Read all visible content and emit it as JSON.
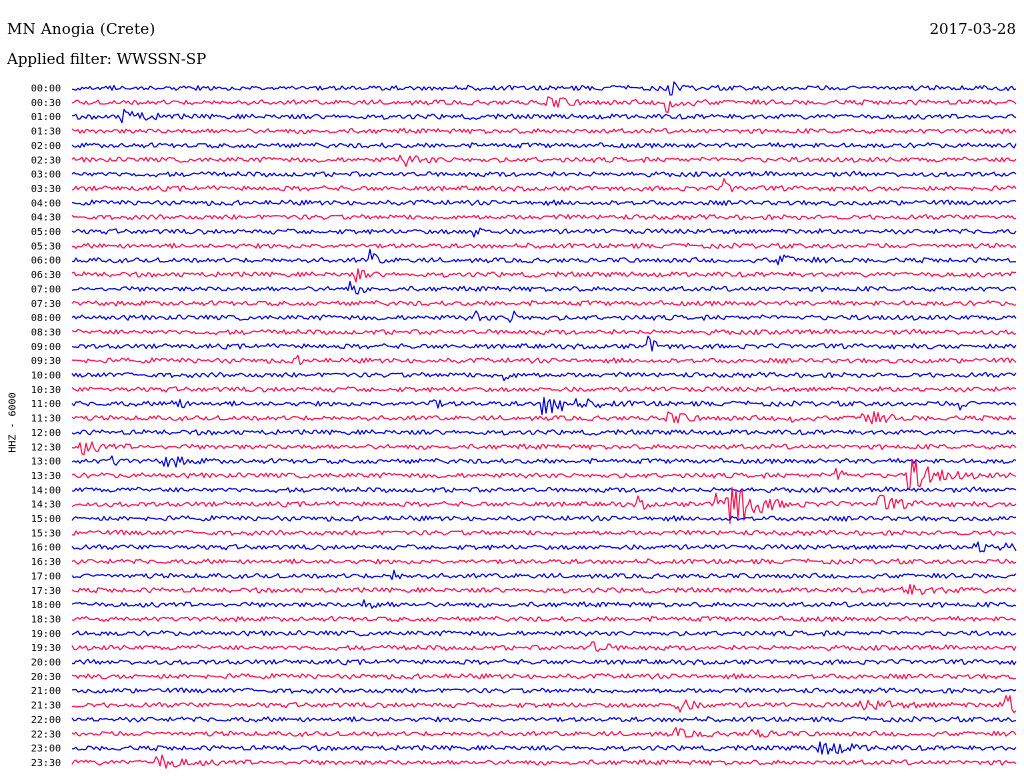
{
  "header": {
    "station": "MN Anogia (Crete)",
    "date": "2017-03-28",
    "filter_label": "Applied filter: WWSSN-SP"
  },
  "colors": {
    "trace_a": "#0000e0",
    "trace_b": "#ff1050",
    "background": "#ffffff"
  },
  "chart_data": {
    "type": "line",
    "title": "MN Anogia (Crete)",
    "ylabel": "HHZ - 6000",
    "x_description": "one 30-minute trace per row",
    "tick_labels": [
      "00:00",
      "00:30",
      "01:00",
      "01:30",
      "02:00",
      "02:30",
      "03:00",
      "03:30",
      "04:00",
      "04:30",
      "05:00",
      "05:30",
      "06:00",
      "06:30",
      "07:00",
      "07:30",
      "08:00",
      "08:30",
      "09:00",
      "09:30",
      "10:00",
      "10:30",
      "11:00",
      "11:30",
      "12:00",
      "12:30",
      "13:00",
      "13:30",
      "14:00",
      "14:30",
      "15:00",
      "15:30",
      "16:00",
      "16:30",
      "17:00",
      "17:30",
      "18:00",
      "18:30",
      "19:00",
      "19:30",
      "20:00",
      "20:30",
      "21:00",
      "21:30",
      "22:00",
      "22:30",
      "23:00",
      "23:30"
    ],
    "events": [
      {
        "row": 0,
        "pos": 0.63,
        "amp": 12,
        "width": 0.004
      },
      {
        "row": 1,
        "pos": 0.5,
        "amp": 7,
        "width": 0.012
      },
      {
        "row": 1,
        "pos": 0.63,
        "amp": 10,
        "width": 0.008
      },
      {
        "row": 2,
        "pos": 0.055,
        "amp": 8,
        "width": 0.01
      },
      {
        "row": 5,
        "pos": 0.35,
        "amp": 5,
        "width": 0.012
      },
      {
        "row": 7,
        "pos": 0.69,
        "amp": 9,
        "width": 0.004
      },
      {
        "row": 10,
        "pos": 0.425,
        "amp": 5,
        "width": 0.006
      },
      {
        "row": 12,
        "pos": 0.315,
        "amp": 11,
        "width": 0.004
      },
      {
        "row": 12,
        "pos": 0.75,
        "amp": 5,
        "width": 0.01
      },
      {
        "row": 13,
        "pos": 0.3,
        "amp": 9,
        "width": 0.004
      },
      {
        "row": 14,
        "pos": 0.295,
        "amp": 10,
        "width": 0.004
      },
      {
        "row": 16,
        "pos": 0.425,
        "amp": 9,
        "width": 0.004
      },
      {
        "row": 16,
        "pos": 0.465,
        "amp": 8,
        "width": 0.004
      },
      {
        "row": 18,
        "pos": 0.61,
        "amp": 10,
        "width": 0.005
      },
      {
        "row": 19,
        "pos": 0.235,
        "amp": 6,
        "width": 0.004
      },
      {
        "row": 20,
        "pos": 0.455,
        "amp": 8,
        "width": 0.004
      },
      {
        "row": 22,
        "pos": 0.106,
        "amp": 12,
        "width": 0.004
      },
      {
        "row": 22,
        "pos": 0.38,
        "amp": 8,
        "width": 0.004
      },
      {
        "row": 22,
        "pos": 0.5,
        "amp": 11,
        "width": 0.018
      },
      {
        "row": 22,
        "pos": 0.94,
        "amp": 5,
        "width": 0.004
      },
      {
        "row": 23,
        "pos": 0.63,
        "amp": 7,
        "width": 0.01
      },
      {
        "row": 23,
        "pos": 0.76,
        "amp": 9,
        "width": 0.004
      },
      {
        "row": 23,
        "pos": 0.838,
        "amp": 9,
        "width": 0.01
      },
      {
        "row": 25,
        "pos": 0.01,
        "amp": 7,
        "width": 0.01
      },
      {
        "row": 26,
        "pos": 0.04,
        "amp": 7,
        "width": 0.004
      },
      {
        "row": 26,
        "pos": 0.1,
        "amp": 6,
        "width": 0.01
      },
      {
        "row": 27,
        "pos": 0.81,
        "amp": 9,
        "width": 0.004
      },
      {
        "row": 27,
        "pos": 0.886,
        "amp": 18,
        "width": 0.014
      },
      {
        "row": 29,
        "pos": 0.6,
        "amp": 7,
        "width": 0.004
      },
      {
        "row": 29,
        "pos": 0.685,
        "amp": 22,
        "width": 0.012
      },
      {
        "row": 29,
        "pos": 0.7,
        "amp": 20,
        "width": 0.012
      },
      {
        "row": 29,
        "pos": 0.855,
        "amp": 8,
        "width": 0.012
      },
      {
        "row": 32,
        "pos": 0.96,
        "amp": 5,
        "width": 0.02
      },
      {
        "row": 34,
        "pos": 0.34,
        "amp": 7,
        "width": 0.004
      },
      {
        "row": 35,
        "pos": 0.88,
        "amp": 6,
        "width": 0.016
      },
      {
        "row": 36,
        "pos": 0.31,
        "amp": 4,
        "width": 0.008
      },
      {
        "row": 39,
        "pos": 0.55,
        "amp": 6,
        "width": 0.008
      },
      {
        "row": 43,
        "pos": 0.64,
        "amp": 8,
        "width": 0.008
      },
      {
        "row": 43,
        "pos": 0.84,
        "amp": 4,
        "width": 0.02
      },
      {
        "row": 43,
        "pos": 0.99,
        "amp": 11,
        "width": 0.01
      },
      {
        "row": 45,
        "pos": 0.64,
        "amp": 4,
        "width": 0.01
      },
      {
        "row": 45,
        "pos": 0.72,
        "amp": 4,
        "width": 0.01
      },
      {
        "row": 46,
        "pos": 0.79,
        "amp": 9,
        "width": 0.014
      },
      {
        "row": 47,
        "pos": 0.092,
        "amp": 8,
        "width": 0.012
      }
    ]
  }
}
